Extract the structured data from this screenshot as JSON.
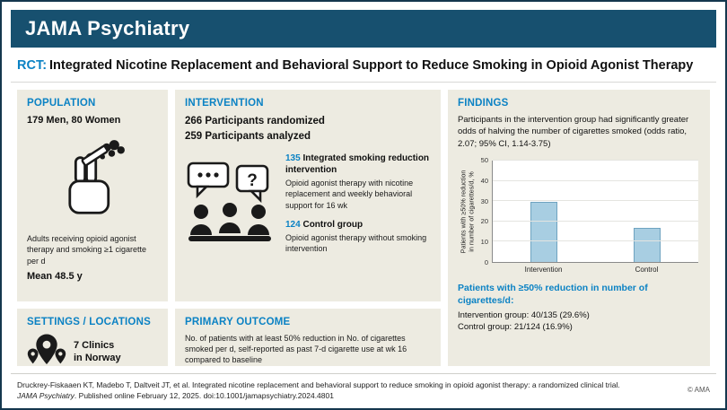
{
  "header": {
    "journal": "JAMA Psychiatry"
  },
  "title": {
    "tag": "RCT:",
    "text": "Integrated Nicotine Replacement and Behavioral Support to Reduce Smoking in Opioid Agonist Therapy"
  },
  "population": {
    "heading": "POPULATION",
    "demographics": "179 Men, 80 Women",
    "description": "Adults receiving opioid agonist therapy and smoking ≥1 cigarette per d",
    "mean_age": "Mean 48.5 y"
  },
  "intervention": {
    "heading": "INTERVENTION",
    "randomized_count": "266",
    "randomized_label": "Participants randomized",
    "analyzed_count": "259",
    "analyzed_label": "Participants analyzed",
    "groups": [
      {
        "count": "135",
        "name": "Integrated smoking reduction intervention",
        "description": "Opioid agonist therapy with nicotine replacement and weekly behavioral support for 16 wk"
      },
      {
        "count": "124",
        "name": "Control group",
        "description": "Opioid agonist therapy without smoking intervention"
      }
    ]
  },
  "settings": {
    "heading": "SETTINGS / LOCATIONS",
    "line1": "7 Clinics",
    "line2": "in Norway"
  },
  "primary_outcome": {
    "heading": "PRIMARY OUTCOME",
    "text": "No. of patients with at least 50% reduction in No. of cigarettes smoked per d, self-reported as past 7-d cigarette use at wk 16 compared to baseline"
  },
  "findings": {
    "heading": "FINDINGS",
    "summary": "Participants in the intervention group had significantly greater odds of halving the number of cigarettes smoked (odds ratio, 2.07; 95% CI, 1.14-3.75)",
    "result_heading": "Patients with ≥50% reduction in number of cigarettes/d:",
    "result_lines": [
      "Intervention group: 40/135 (29.6%)",
      "Control group: 21/124 (16.9%)"
    ]
  },
  "chart_data": {
    "type": "bar",
    "categories": [
      "Intervention",
      "Control"
    ],
    "values": [
      29.6,
      16.9
    ],
    "title": "",
    "xlabel": "",
    "ylabel": "Patients with ≥50% reduction\nin number of cigarettes/d, %",
    "ylim": [
      0,
      50
    ],
    "yticks": [
      0,
      10,
      20,
      30,
      40,
      50
    ],
    "grid": "horizontal",
    "legend": "none",
    "bar_color": "#a8cee2",
    "bar_border": "#6fa3c0"
  },
  "footer": {
    "line1": "Druckrey-Fiskaaen KT, Madebo T, Daltveit JT, et al. Integrated nicotine replacement and behavioral support to reduce smoking in opioid agonist therapy: a randomized clinical trial.",
    "line2_italic": "JAMA Psychiatry",
    "line2_rest": ". Published online February 12, 2025. doi:10.1001/jamapsychiatry.2024.4801",
    "copyright": "© AMA"
  }
}
